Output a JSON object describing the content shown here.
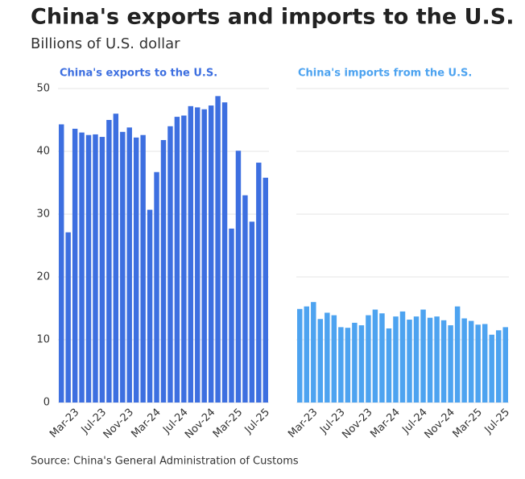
{
  "header": {
    "title": "China's exports and imports to the U.S.",
    "subtitle": "Billions of U.S. dollar"
  },
  "footer": {
    "source": "Source: China's General Administration of Customs"
  },
  "chart_data": [
    {
      "type": "bar",
      "title": "China's exports to the U.S.",
      "color": "#3d6fe0",
      "categories": [
        null,
        null,
        "Mar-23",
        null,
        null,
        null,
        "Jul-23",
        null,
        null,
        null,
        "Nov-23",
        null,
        null,
        null,
        "Mar-24",
        null,
        null,
        null,
        "Jul-24",
        null,
        null,
        null,
        "Nov-24",
        null,
        null,
        null,
        "Mar-25",
        null,
        null,
        null,
        "Jul-25"
      ],
      "values": [
        44.3,
        27.1,
        43.6,
        43.0,
        42.6,
        42.7,
        42.3,
        45.0,
        46.0,
        43.1,
        43.8,
        42.2,
        42.6,
        30.7,
        36.7,
        41.8,
        44.0,
        45.5,
        45.7,
        47.2,
        47.0,
        46.7,
        47.3,
        48.8,
        47.8,
        27.7,
        40.1,
        33.0,
        28.8,
        38.2,
        35.8
      ],
      "ylim": [
        0,
        50
      ],
      "yticks": [
        0,
        10,
        20,
        30,
        40,
        50
      ],
      "grid": true
    },
    {
      "type": "bar",
      "title": "China's imports from the U.S.",
      "color": "#4da3f0",
      "categories": [
        null,
        null,
        "Mar-23",
        null,
        null,
        null,
        "Jul-23",
        null,
        null,
        null,
        "Nov-23",
        null,
        null,
        null,
        "Mar-24",
        null,
        null,
        null,
        "Jul-24",
        null,
        null,
        null,
        "Nov-24",
        null,
        null,
        null,
        "Mar-25",
        null,
        null,
        null,
        "Jul-25"
      ],
      "values": [
        14.9,
        15.3,
        16.0,
        13.3,
        14.3,
        13.9,
        12.0,
        11.9,
        12.7,
        12.3,
        13.9,
        14.8,
        14.2,
        11.8,
        13.7,
        14.5,
        13.2,
        13.7,
        14.8,
        13.5,
        13.7,
        13.1,
        12.3,
        15.3,
        13.4,
        13.0,
        12.4,
        12.5,
        10.8,
        11.5,
        12.0
      ],
      "ylim": [
        0,
        50
      ],
      "yticks": [
        0,
        10,
        20,
        30,
        40,
        50
      ],
      "grid": true
    }
  ]
}
